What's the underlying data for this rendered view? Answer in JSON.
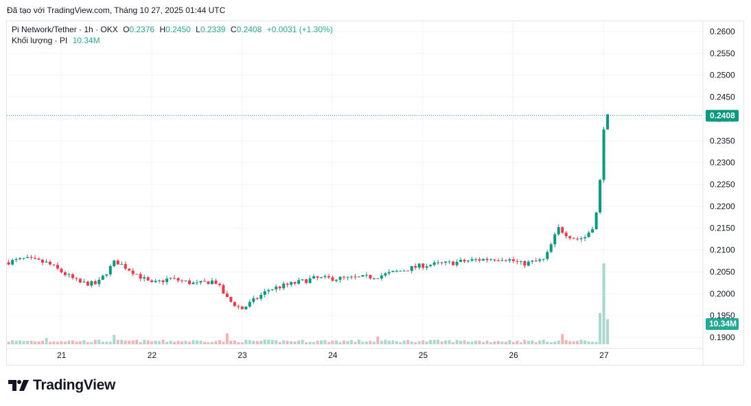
{
  "header": {
    "created_text": "Đã tạo với TradingView.com, Tháng 10 27, 2025 01:44 UTC"
  },
  "legend": {
    "symbol": "Pi Network/Tether · 1h · OKX",
    "o_label": "O",
    "o_value": "0.2376",
    "h_label": "H",
    "h_value": "0.2450",
    "l_label": "L",
    "l_value": "0.2339",
    "c_label": "C",
    "c_value": "0.2408",
    "change": "+0.0031 (+1.30%)",
    "volume_label": "Khối lượng · PI",
    "volume_value": "10.34M"
  },
  "footer": {
    "brand": "TradingView"
  },
  "colors": {
    "up": "#089981",
    "down": "#f23645",
    "vol_up": "#a8d8d0",
    "vol_down": "#f5b3b8",
    "grid": "#f0f3fa",
    "price_line": "#089981"
  },
  "chart_data": {
    "type": "candlestick",
    "title": "Pi Network/Tether · 1h · OKX",
    "y_ticks": [
      "0.2600",
      "0.2550",
      "0.2500",
      "0.2450",
      "0.2400",
      "0.2350",
      "0.2300",
      "0.2250",
      "0.2200",
      "0.2150",
      "0.2100",
      "0.2050",
      "0.2000",
      "0.1950",
      "0.1900"
    ],
    "y_range": [
      0.1875,
      0.2625
    ],
    "x_ticks": [
      "21",
      "22",
      "23",
      "24",
      "25",
      "26",
      "27"
    ],
    "x_range_days": [
      20.4,
      28.1
    ],
    "last_price_label": "0.2408",
    "last_price": 0.2408,
    "volume_label": "10.34M",
    "series": [
      {
        "name": "price_path",
        "x": [
          20.4,
          20.6,
          20.85,
          21.2,
          21.4,
          21.6,
          21.8,
          22.0,
          22.2,
          22.5,
          22.7,
          22.85,
          23.0,
          23.3,
          23.6,
          23.8,
          24.2,
          24.5,
          24.7,
          25.0,
          25.3,
          25.6,
          25.9,
          26.1,
          26.35,
          26.5,
          26.6,
          26.7,
          26.8,
          26.9,
          26.95,
          27.0,
          27.05
        ],
        "y": [
          0.2072,
          0.208,
          0.207,
          0.2025,
          0.2022,
          0.2075,
          0.205,
          0.2022,
          0.2035,
          0.2022,
          0.203,
          0.1985,
          0.1965,
          0.201,
          0.2025,
          0.2035,
          0.2035,
          0.204,
          0.205,
          0.2065,
          0.207,
          0.2078,
          0.2082,
          0.2068,
          0.2078,
          0.215,
          0.2135,
          0.2125,
          0.213,
          0.216,
          0.222,
          0.238,
          0.2408
        ]
      },
      {
        "name": "volume_spikes",
        "x": [
          20.85,
          21.6,
          22.85,
          24.5,
          26.55,
          26.95,
          27.0,
          27.05
        ],
        "y": [
          0.8,
          1.2,
          1.4,
          1.0,
          1.3,
          4.0,
          10.34,
          3.2
        ]
      }
    ]
  }
}
